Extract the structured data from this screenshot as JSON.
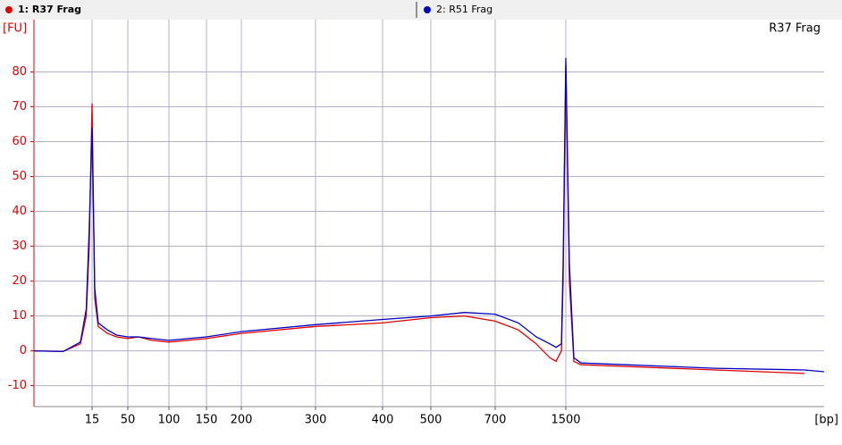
{
  "chart_data": {
    "type": "line",
    "legend_items": [
      "1: R37 Frag",
      "2: R51 Frag"
    ],
    "annotation": "R37 Frag",
    "y_label": "[FU]",
    "x_label": "[bp]",
    "x": [
      5,
      10,
      13,
      14,
      14.5,
      15,
      17.6,
      21,
      30,
      39,
      50,
      63,
      79,
      100,
      150,
      200,
      300,
      400,
      500,
      605,
      700,
      963,
      1165,
      1320,
      1390,
      1450,
      1470,
      1500,
      1618,
      1765,
      2000,
      3470,
      6410,
      9350,
      10000
    ],
    "series": [
      {
        "name": "R37 Frag",
        "color": "#e00000",
        "values": [
          0,
          -0.2,
          2,
          10,
          30,
          71,
          15,
          7,
          5,
          4,
          3.5,
          4,
          3,
          2.5,
          3.5,
          5,
          7,
          8,
          9.5,
          10,
          8.5,
          6,
          2,
          -2,
          -3,
          0,
          20,
          82,
          20,
          -3,
          -4,
          -4.5,
          -5.5,
          -6.5,
          null
        ]
      },
      {
        "name": "R51 Frag",
        "color": "#0000c0",
        "values": [
          0,
          -0.2,
          2.5,
          12,
          35,
          64,
          18,
          8,
          6,
          4.5,
          4,
          4,
          3.5,
          3,
          4,
          5.5,
          7.5,
          9,
          10,
          11,
          10.5,
          8,
          4,
          2,
          1,
          2,
          25,
          84,
          25,
          -2,
          -3.5,
          -4,
          -5,
          -5.5,
          -6
        ]
      }
    ],
    "xlim": [
      5,
      10000
    ],
    "xticks": [
      15,
      50,
      100,
      150,
      200,
      300,
      400,
      500,
      700,
      1500
    ],
    "ylim": [
      -16,
      95
    ],
    "yticks": [
      -10,
      0,
      10,
      20,
      30,
      40,
      50,
      60,
      70,
      80
    ],
    "grid": true
  }
}
